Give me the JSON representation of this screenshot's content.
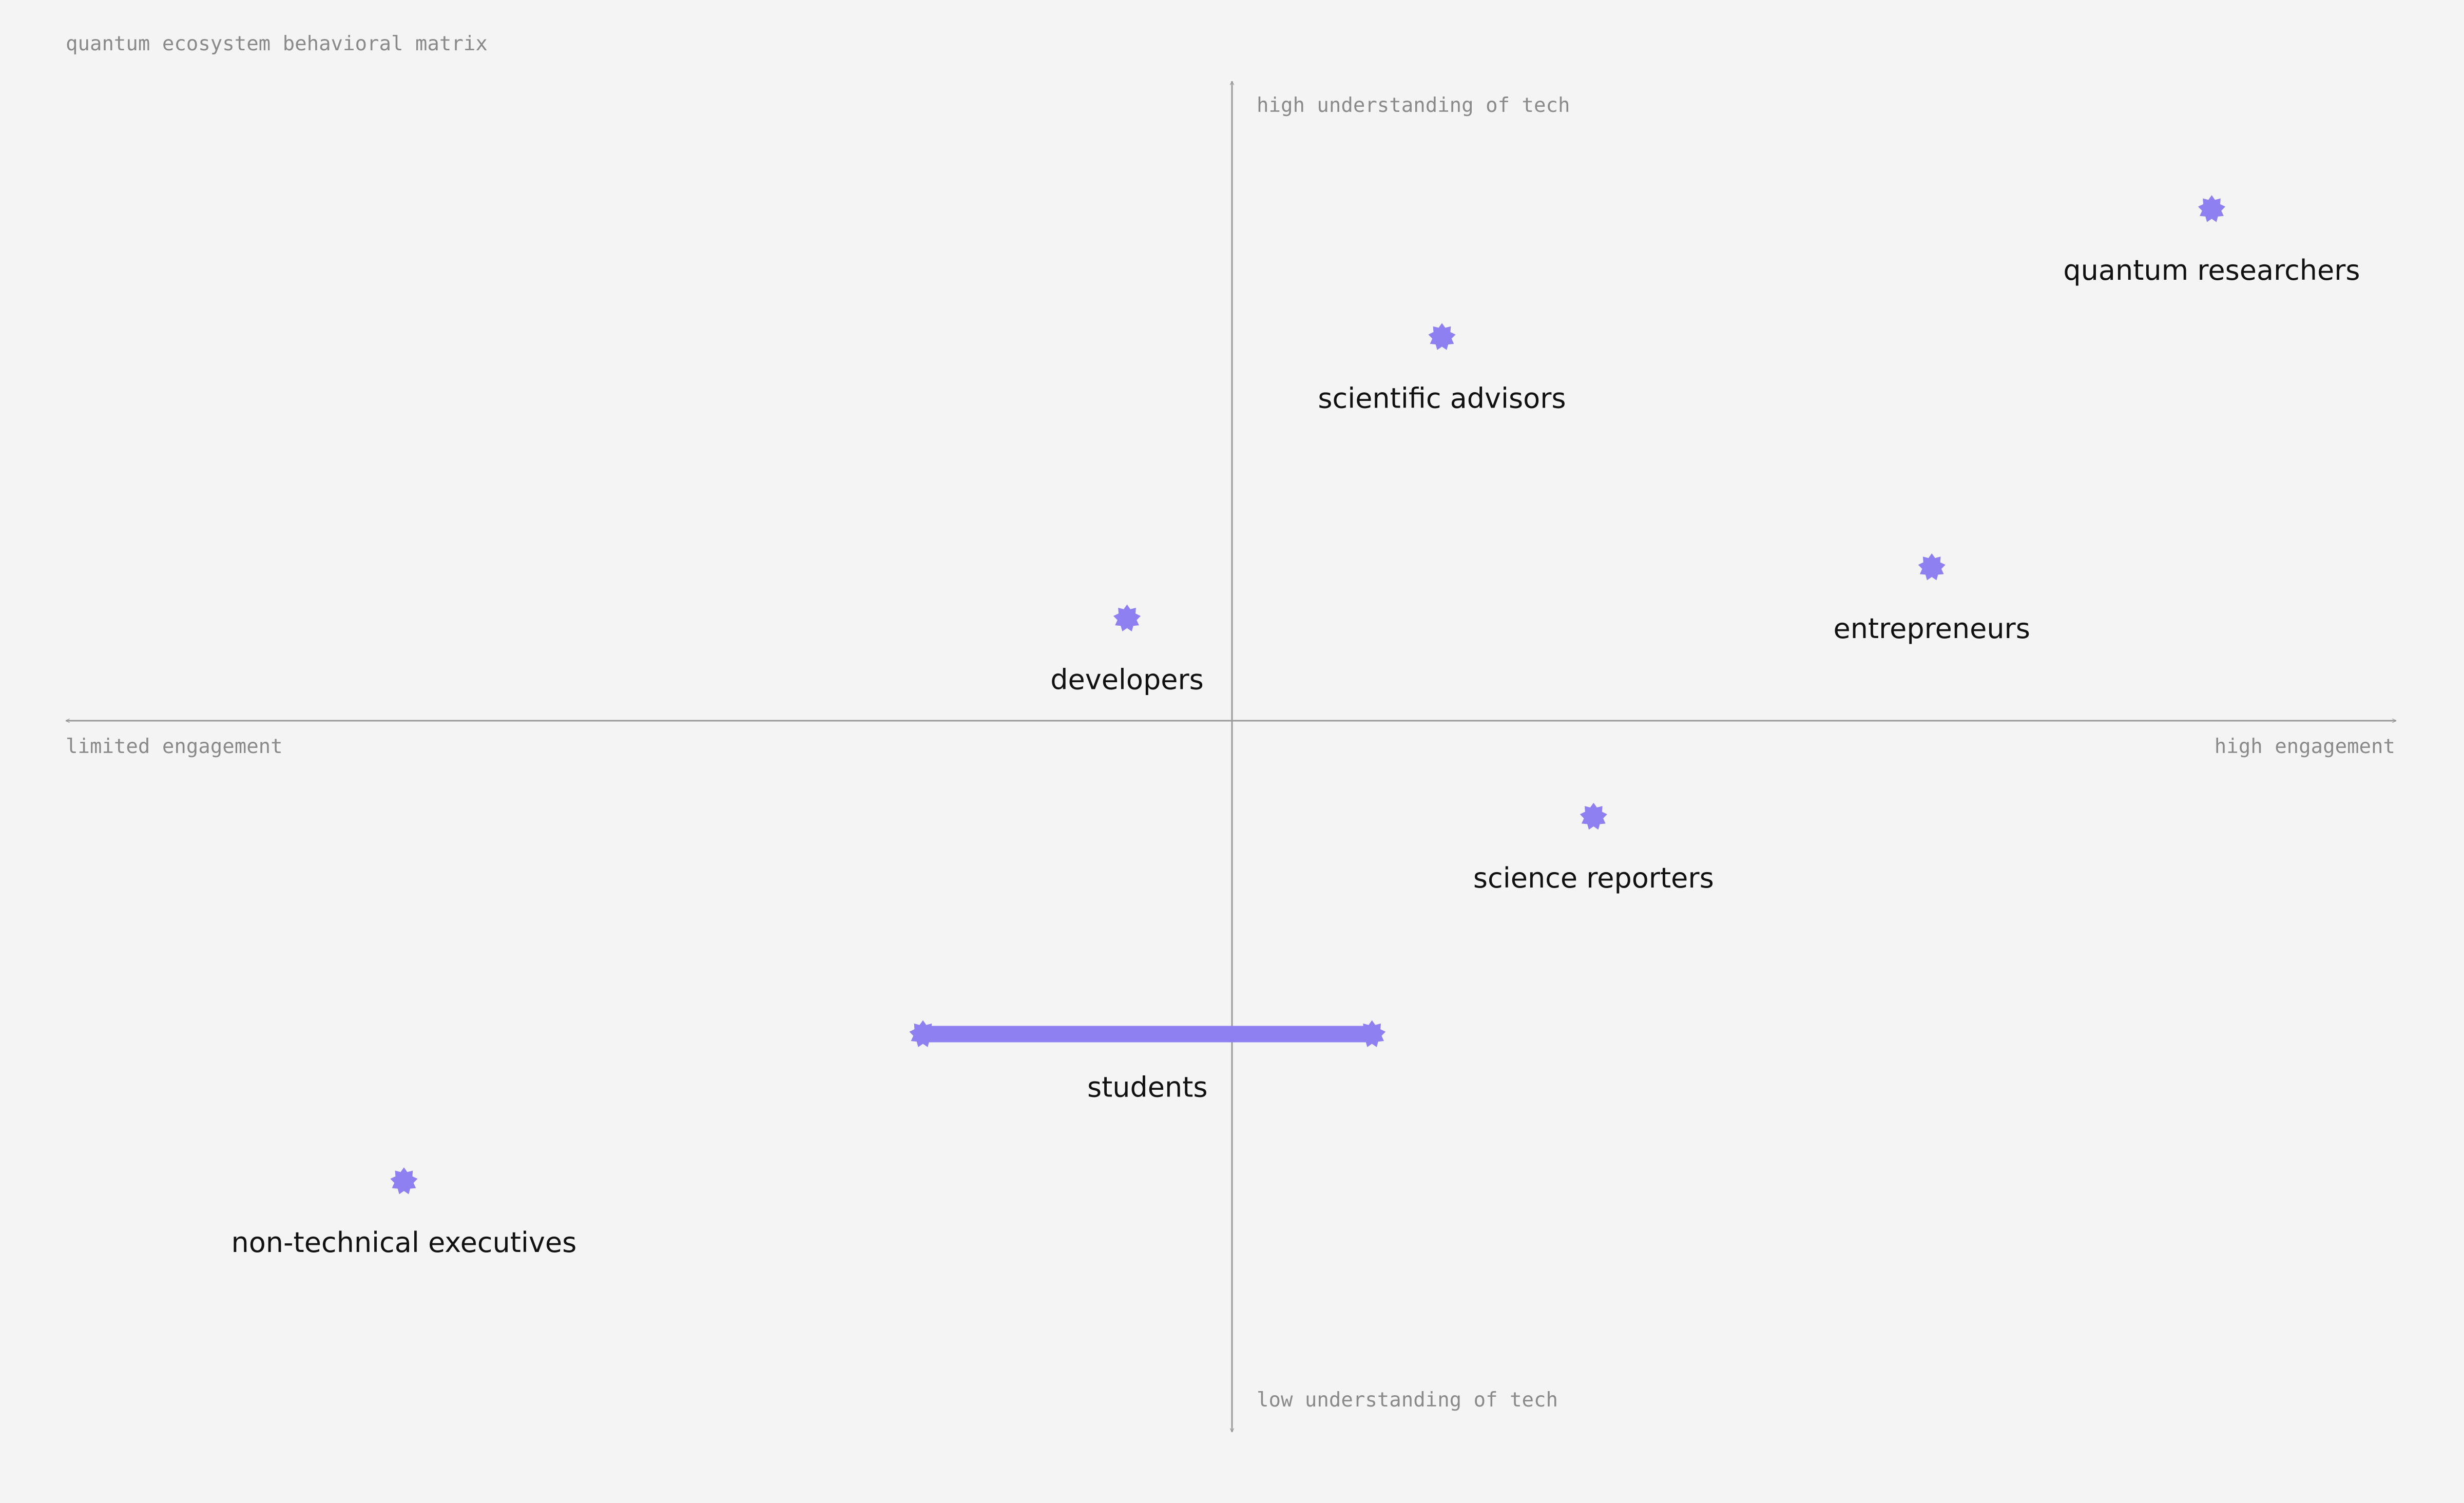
{
  "title": "quantum ecosystem behavioral matrix",
  "axes": {
    "x_min_label": "limited engagement",
    "x_max_label": "high engagement",
    "y_max_label": "high understanding of tech",
    "y_min_label": "low understanding of tech"
  },
  "colors": {
    "background": "#f4f4f4",
    "marker": "#8f80f2",
    "axis": "#9a9a9a",
    "label": "#111111",
    "muted_text": "#8a8a8a"
  },
  "chart_data": {
    "type": "scatter",
    "xlim": [
      -1,
      1
    ],
    "ylim": [
      -1,
      1
    ],
    "grid": false,
    "marker_icon": "star-burst-icon",
    "points": [
      {
        "label": "quantum researchers",
        "x": 0.84,
        "y": 0.8
      },
      {
        "label": "scientific advisors",
        "x": 0.18,
        "y": 0.6
      },
      {
        "label": "entrepreneurs",
        "x": 0.6,
        "y": 0.24
      },
      {
        "label": "developers",
        "x": -0.09,
        "y": 0.16
      },
      {
        "label": "science reporters",
        "x": 0.31,
        "y": -0.15
      },
      {
        "label": "non-technical executives",
        "x": -0.71,
        "y": -0.72
      }
    ],
    "ranges": [
      {
        "label": "students",
        "x_start": -0.265,
        "x_end": 0.12,
        "y": -0.49
      }
    ]
  }
}
